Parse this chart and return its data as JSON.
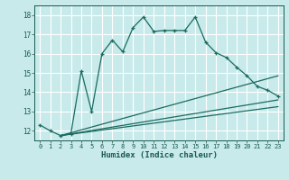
{
  "title": "",
  "xlabel": "Humidex (Indice chaleur)",
  "bg_color": "#c8eaea",
  "grid_color": "#ffffff",
  "line_color": "#1a6b60",
  "ylim": [
    11.5,
    18.5
  ],
  "xlim": [
    -0.5,
    23.5
  ],
  "yticks": [
    12,
    13,
    14,
    15,
    16,
    17,
    18
  ],
  "xticks": [
    0,
    1,
    2,
    3,
    4,
    5,
    6,
    7,
    8,
    9,
    10,
    11,
    12,
    13,
    14,
    15,
    16,
    17,
    18,
    19,
    20,
    21,
    22,
    23
  ],
  "main_line_x": [
    0,
    1,
    2,
    3,
    4,
    5,
    6,
    7,
    8,
    9,
    10,
    11,
    12,
    13,
    14,
    15,
    16,
    17,
    18,
    19,
    20,
    21,
    22,
    23
  ],
  "main_line_y": [
    12.3,
    12.0,
    11.75,
    11.85,
    15.1,
    13.0,
    16.0,
    16.7,
    16.1,
    17.35,
    17.9,
    17.15,
    17.2,
    17.2,
    17.2,
    17.9,
    16.6,
    16.05,
    15.8,
    15.3,
    14.85,
    14.3,
    14.1,
    13.8
  ],
  "fan_lines": [
    {
      "x": [
        2,
        23
      ],
      "y": [
        11.75,
        14.85
      ]
    },
    {
      "x": [
        2,
        23
      ],
      "y": [
        11.75,
        13.6
      ]
    },
    {
      "x": [
        2,
        23
      ],
      "y": [
        11.75,
        13.25
      ]
    }
  ]
}
